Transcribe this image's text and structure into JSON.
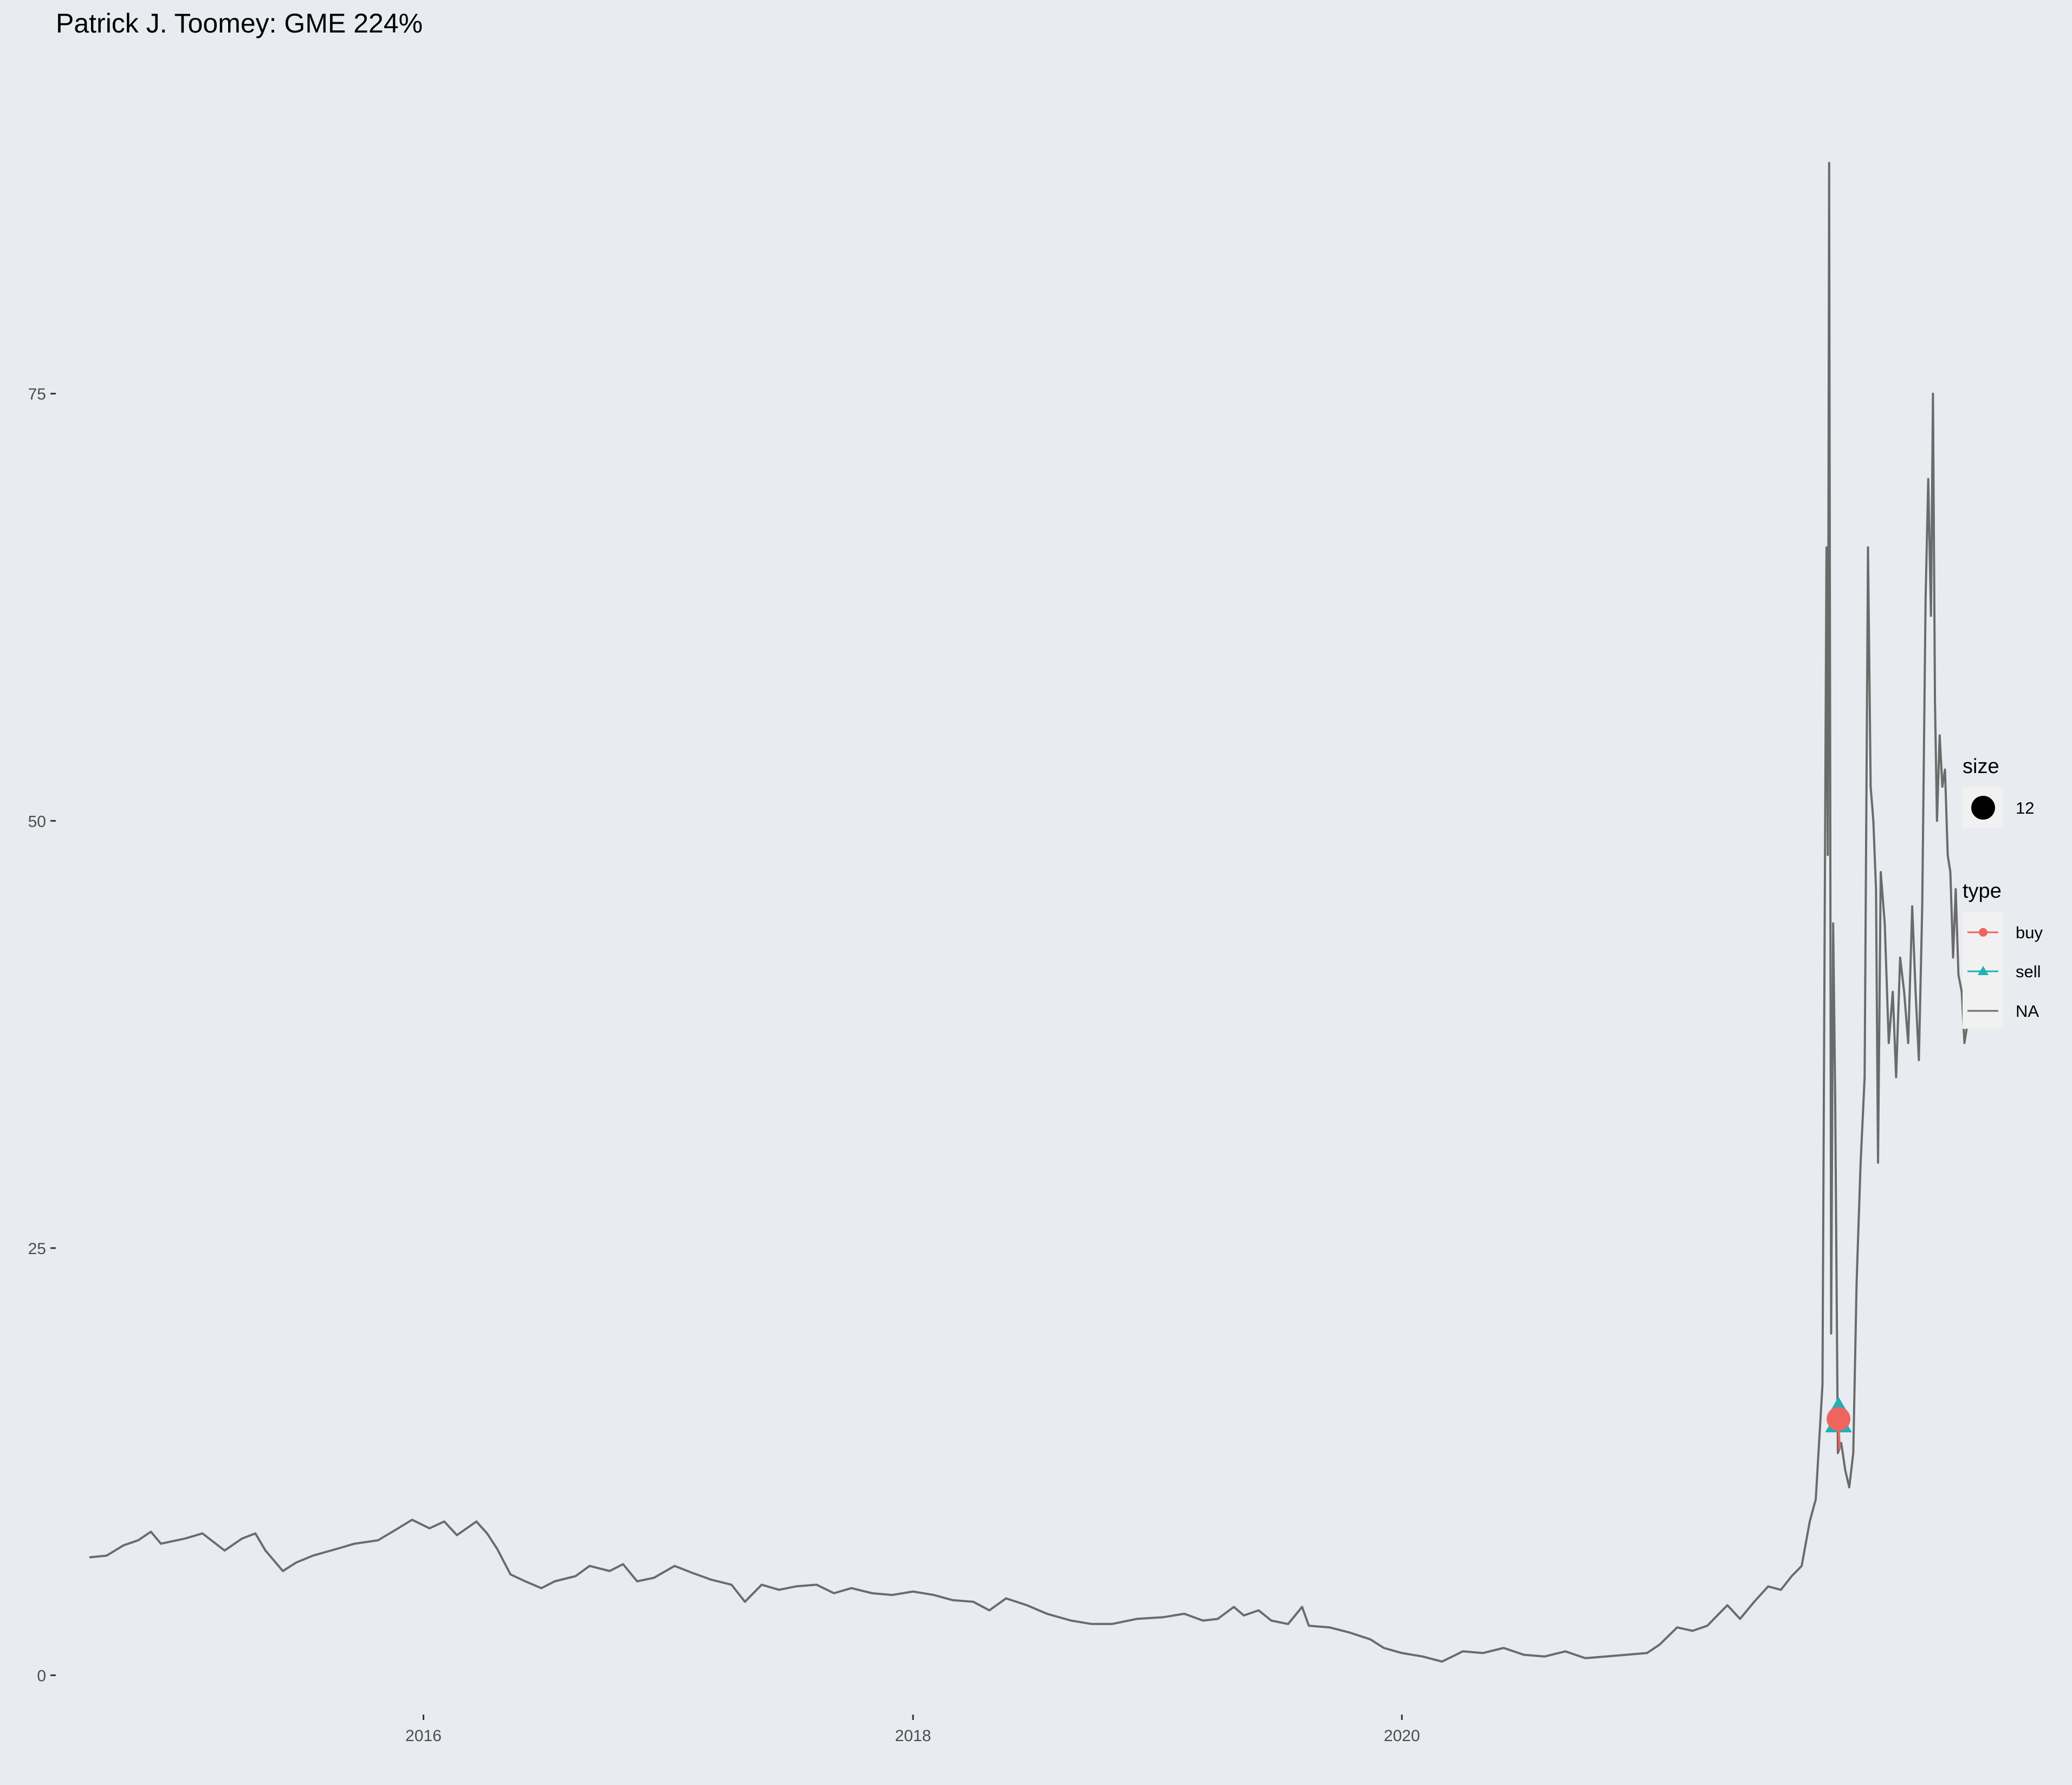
{
  "chart_data": {
    "type": "line",
    "title": "Patrick J. Toomey: GME   224%",
    "xlabel": "",
    "ylabel": "",
    "x_type": "date",
    "xlim": [
      "2014-07-01",
      "2022-04-01"
    ],
    "ylim": [
      -2.3,
      95.5
    ],
    "x_ticks": [
      {
        "value": "2016-01-01",
        "label": "2016"
      },
      {
        "value": "2018-01-01",
        "label": "2018"
      },
      {
        "value": "2020-01-01",
        "label": "2020"
      }
    ],
    "y_ticks": [
      {
        "value": 0,
        "label": "0"
      },
      {
        "value": 25,
        "label": "25"
      },
      {
        "value": 50,
        "label": "50"
      },
      {
        "value": 75,
        "label": "75"
      }
    ],
    "grid": true,
    "legend_position": "right",
    "colors": {
      "background": "#e8ebf0",
      "price_line": "#6b6b6b",
      "buy": "#f0645f",
      "sell": "#1fb1b4",
      "tick": "#333333",
      "legend_key_bg": "#f1f1f1"
    },
    "series": [
      {
        "name": "NA",
        "color": "#6b6b6b",
        "points": [
          [
            "2014-08-20",
            6.9
          ],
          [
            "2014-09-15",
            7.0
          ],
          [
            "2014-10-10",
            7.6
          ],
          [
            "2014-11-01",
            7.9
          ],
          [
            "2014-11-20",
            8.4
          ],
          [
            "2014-12-05",
            7.7
          ],
          [
            "2015-01-10",
            8.0
          ],
          [
            "2015-02-05",
            8.3
          ],
          [
            "2015-03-10",
            7.3
          ],
          [
            "2015-04-05",
            8.0
          ],
          [
            "2015-04-25",
            8.3
          ],
          [
            "2015-05-10",
            7.3
          ],
          [
            "2015-06-05",
            6.1
          ],
          [
            "2015-06-25",
            6.6
          ],
          [
            "2015-07-20",
            7.0
          ],
          [
            "2015-08-25",
            7.4
          ],
          [
            "2015-09-20",
            7.7
          ],
          [
            "2015-10-25",
            7.9
          ],
          [
            "2015-11-20",
            8.5
          ],
          [
            "2015-12-15",
            9.1
          ],
          [
            "2016-01-10",
            8.6
          ],
          [
            "2016-02-01",
            9.0
          ],
          [
            "2016-02-20",
            8.2
          ],
          [
            "2016-03-20",
            9.0
          ],
          [
            "2016-04-05",
            8.3
          ],
          [
            "2016-04-20",
            7.4
          ],
          [
            "2016-05-10",
            5.9
          ],
          [
            "2016-06-01",
            5.5
          ],
          [
            "2016-06-25",
            5.1
          ],
          [
            "2016-07-15",
            5.5
          ],
          [
            "2016-08-15",
            5.8
          ],
          [
            "2016-09-05",
            6.4
          ],
          [
            "2016-10-05",
            6.1
          ],
          [
            "2016-10-25",
            6.5
          ],
          [
            "2016-11-15",
            5.5
          ],
          [
            "2016-12-10",
            5.7
          ],
          [
            "2017-01-10",
            6.4
          ],
          [
            "2017-02-05",
            6.0
          ],
          [
            "2017-03-05",
            5.6
          ],
          [
            "2017-04-05",
            5.3
          ],
          [
            "2017-04-25",
            4.3
          ],
          [
            "2017-05-20",
            5.3
          ],
          [
            "2017-06-15",
            5.0
          ],
          [
            "2017-07-10",
            5.2
          ],
          [
            "2017-08-10",
            5.3
          ],
          [
            "2017-09-05",
            4.8
          ],
          [
            "2017-10-01",
            5.1
          ],
          [
            "2017-11-01",
            4.8
          ],
          [
            "2017-12-01",
            4.7
          ],
          [
            "2018-01-01",
            4.9
          ],
          [
            "2018-02-01",
            4.7
          ],
          [
            "2018-03-01",
            4.4
          ],
          [
            "2018-04-01",
            4.3
          ],
          [
            "2018-04-25",
            3.8
          ],
          [
            "2018-05-20",
            4.5
          ],
          [
            "2018-06-20",
            4.1
          ],
          [
            "2018-07-20",
            3.6
          ],
          [
            "2018-08-25",
            3.2
          ],
          [
            "2018-09-25",
            3.0
          ],
          [
            "2018-10-25",
            3.0
          ],
          [
            "2018-12-01",
            3.3
          ],
          [
            "2019-01-10",
            3.4
          ],
          [
            "2019-02-10",
            3.6
          ],
          [
            "2019-03-10",
            3.2
          ],
          [
            "2019-04-01",
            3.3
          ],
          [
            "2019-04-25",
            4.0
          ],
          [
            "2019-05-10",
            3.5
          ],
          [
            "2019-06-01",
            3.8
          ],
          [
            "2019-06-20",
            3.2
          ],
          [
            "2019-07-15",
            3.0
          ],
          [
            "2019-08-05",
            4.0
          ],
          [
            "2019-08-15",
            2.9
          ],
          [
            "2019-09-15",
            2.8
          ],
          [
            "2019-10-15",
            2.5
          ],
          [
            "2019-11-15",
            2.1
          ],
          [
            "2019-12-05",
            1.6
          ],
          [
            "2020-01-01",
            1.3
          ],
          [
            "2020-02-01",
            1.1
          ],
          [
            "2020-03-01",
            0.8
          ],
          [
            "2020-04-01",
            1.4
          ],
          [
            "2020-05-01",
            1.3
          ],
          [
            "2020-06-01",
            1.6
          ],
          [
            "2020-07-01",
            1.2
          ],
          [
            "2020-08-01",
            1.1
          ],
          [
            "2020-09-01",
            1.4
          ],
          [
            "2020-10-01",
            1.0
          ],
          [
            "2020-11-01",
            1.1
          ],
          [
            "2020-12-01",
            1.2
          ],
          [
            "2021-01-01",
            1.3
          ],
          [
            "2021-01-20",
            1.8
          ],
          [
            "2021-02-15",
            2.8
          ],
          [
            "2021-03-10",
            2.6
          ],
          [
            "2021-04-01",
            2.9
          ],
          [
            "2021-05-01",
            4.1
          ],
          [
            "2021-05-20",
            3.3
          ],
          [
            "2021-06-10",
            4.3
          ],
          [
            "2021-07-01",
            5.2
          ],
          [
            "2021-07-20",
            5.0
          ],
          [
            "2021-08-05",
            5.8
          ],
          [
            "2021-08-20",
            6.4
          ],
          [
            "2021-09-01",
            9.0
          ],
          [
            "2021-09-10",
            10.3
          ],
          [
            "2021-09-20",
            17.0
          ],
          [
            "2021-09-26",
            66.0
          ],
          [
            "2021-09-28",
            48.0
          ],
          [
            "2021-09-30",
            88.5
          ],
          [
            "2021-10-03",
            20.0
          ],
          [
            "2021-10-06",
            44.0
          ],
          [
            "2021-10-09",
            34.0
          ],
          [
            "2021-10-13",
            13.0
          ],
          [
            "2021-10-18",
            13.6
          ],
          [
            "2021-10-24",
            12.0
          ],
          [
            "2021-10-30",
            11.0
          ],
          [
            "2021-11-05",
            13.0
          ],
          [
            "2021-11-10",
            23.0
          ],
          [
            "2021-11-16",
            30.0
          ],
          [
            "2021-11-22",
            35.0
          ],
          [
            "2021-11-27",
            66.0
          ],
          [
            "2021-12-01",
            52.0
          ],
          [
            "2021-12-05",
            50.0
          ],
          [
            "2021-12-09",
            46.0
          ],
          [
            "2021-12-12",
            30.0
          ],
          [
            "2021-12-16",
            47.0
          ],
          [
            "2021-12-22",
            44.0
          ],
          [
            "2021-12-28",
            37.0
          ],
          [
            "2022-01-03",
            40.0
          ],
          [
            "2022-01-08",
            35.0
          ],
          [
            "2022-01-14",
            42.0
          ],
          [
            "2022-01-20",
            40.0
          ],
          [
            "2022-01-26",
            37.0
          ],
          [
            "2022-02-01",
            45.0
          ],
          [
            "2022-02-06",
            40.0
          ],
          [
            "2022-02-11",
            36.0
          ],
          [
            "2022-02-16",
            45.0
          ],
          [
            "2022-02-21",
            63.0
          ],
          [
            "2022-02-25",
            70.0
          ],
          [
            "2022-03-01",
            62.0
          ],
          [
            "2022-03-04",
            75.0
          ],
          [
            "2022-03-07",
            57.0
          ],
          [
            "2022-03-10",
            50.0
          ],
          [
            "2022-03-14",
            55.0
          ],
          [
            "2022-03-18",
            52.0
          ],
          [
            "2022-03-22",
            53.0
          ],
          [
            "2022-03-26",
            48.0
          ],
          [
            "2022-03-30",
            47.0
          ],
          [
            "2022-04-03",
            42.0
          ],
          [
            "2022-04-07",
            46.0
          ],
          [
            "2022-04-11",
            41.0
          ],
          [
            "2022-04-16",
            40.0
          ],
          [
            "2022-04-20",
            37.0
          ],
          [
            "2022-04-24",
            38.0
          ]
        ]
      }
    ],
    "trades": [
      {
        "type": "buy",
        "date": "2021-10-14",
        "price": 15.0,
        "size": 12
      },
      {
        "type": "sell",
        "date": "2021-10-10",
        "price": 14.6,
        "size": 12
      },
      {
        "type": "sell",
        "date": "2021-10-18",
        "price": 14.6,
        "size": 12
      },
      {
        "type": "sell",
        "date": "2021-10-14",
        "price": 15.6,
        "size": 12
      }
    ],
    "legend": {
      "size": {
        "title": "size",
        "entries": [
          {
            "label": "12"
          }
        ]
      },
      "type": {
        "title": "type",
        "entries": [
          {
            "label": "buy"
          },
          {
            "label": "sell"
          },
          {
            "label": "NA"
          }
        ]
      }
    }
  }
}
